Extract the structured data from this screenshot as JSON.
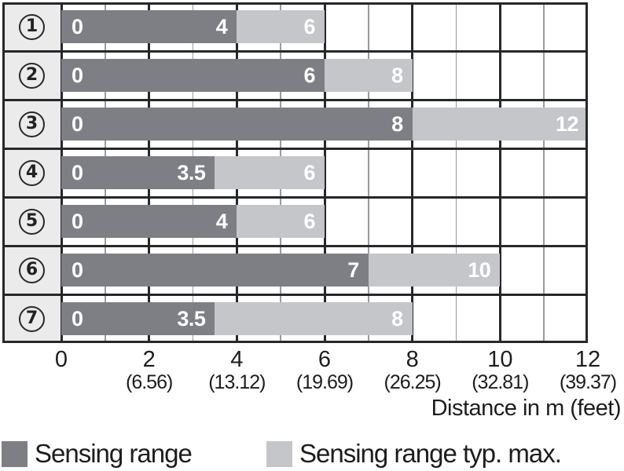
{
  "chart_data": {
    "type": "bar",
    "orientation": "horizontal",
    "title": "",
    "xlabel": "Distance in m (feet)",
    "xlim": [
      0,
      12
    ],
    "grid": {
      "minor_step_m": 1,
      "major_step_m": 2,
      "vertical_only": true
    },
    "categories": [
      "1",
      "2",
      "3",
      "4",
      "5",
      "6",
      "7"
    ],
    "category_style": "circled-number",
    "bar_start_label": "0",
    "series": [
      {
        "name": "Sensing range",
        "color": "#7e7f84",
        "values": [
          4,
          6,
          8,
          3.5,
          4,
          7,
          3.5
        ]
      },
      {
        "name": "Sensing range typ. max.",
        "color": "#c5c6c9",
        "values": [
          6,
          8,
          12,
          6,
          6,
          10,
          8
        ]
      }
    ],
    "bar_end_labels_dark": [
      "4",
      "6",
      "8",
      "3.5",
      "4",
      "7",
      "3.5"
    ],
    "bar_end_labels_light": [
      "6",
      "8",
      "12",
      "6",
      "6",
      "10",
      "8"
    ],
    "x_ticks": [
      {
        "m": "0",
        "feet": ""
      },
      {
        "m": "2",
        "feet": "(6.56)"
      },
      {
        "m": "4",
        "feet": "(13.12)"
      },
      {
        "m": "6",
        "feet": "(19.69)"
      },
      {
        "m": "8",
        "feet": "(26.25)"
      },
      {
        "m": "10",
        "feet": "(32.81)"
      },
      {
        "m": "12",
        "feet": "(39.37)"
      }
    ]
  },
  "legend": {
    "items": [
      {
        "label": "Sensing range",
        "color": "#7e7f84"
      },
      {
        "label": "Sensing range typ. max.",
        "color": "#c5c6c9"
      }
    ]
  },
  "colors": {
    "dark_bar": "#7e7f84",
    "light_bar": "#c5c6c9",
    "label_column_bg": "#ebebec",
    "border_line": "#27282a",
    "minor_gridline": "#9a9b9f",
    "text": "#1d1d1f",
    "bar_label_text": "#ffffff"
  }
}
